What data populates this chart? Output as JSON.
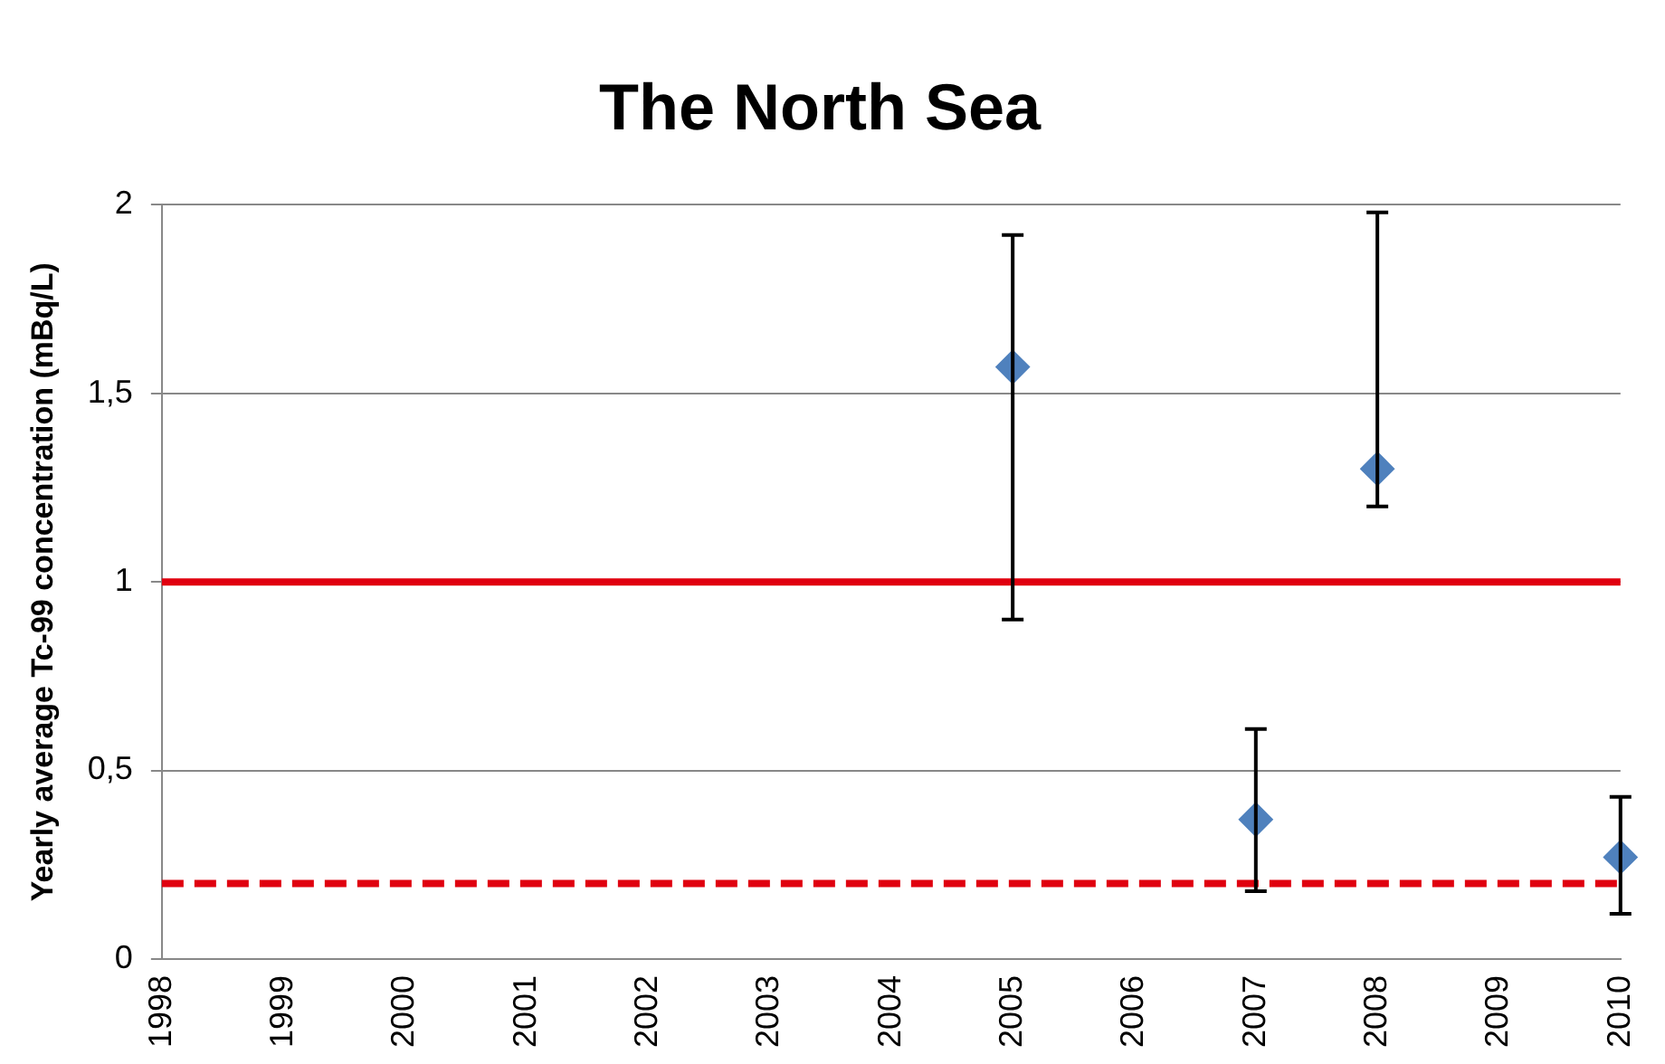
{
  "chart_data": {
    "type": "scatter",
    "title": "The North Sea",
    "ylabel": "Yearly average Tc-99 concentration (mBq/L)",
    "x": [
      2005,
      2007,
      2008,
      2010
    ],
    "series": [
      {
        "color": "#4f81bd",
        "values": [
          1.57,
          0.37,
          1.3,
          0.27
        ],
        "errors": [
          [
            0.9,
            1.92
          ],
          [
            0.18,
            0.61
          ],
          [
            1.2,
            1.98
          ],
          [
            0.12,
            0.43
          ]
        ]
      }
    ],
    "xlim": [
      1998,
      2010
    ],
    "xticks": [
      1998,
      1999,
      2000,
      2001,
      2002,
      2003,
      2004,
      2005,
      2006,
      2007,
      2008,
      2009,
      2010
    ],
    "ylim": [
      0,
      2
    ],
    "yticks": [
      0,
      {
        "value": 0.5,
        "label": "0,5"
      },
      1,
      {
        "value": 1.5,
        "label": "1,5"
      },
      2
    ],
    "ref_lines": [
      {
        "axis": "y",
        "value": 1,
        "color": "#e0000f",
        "line_style": "solid"
      },
      {
        "axis": "y",
        "value": 0.2,
        "color": "#e0000f",
        "line_style": "dashed"
      }
    ],
    "grid": "y",
    "marker": "diamond",
    "legend": false
  }
}
